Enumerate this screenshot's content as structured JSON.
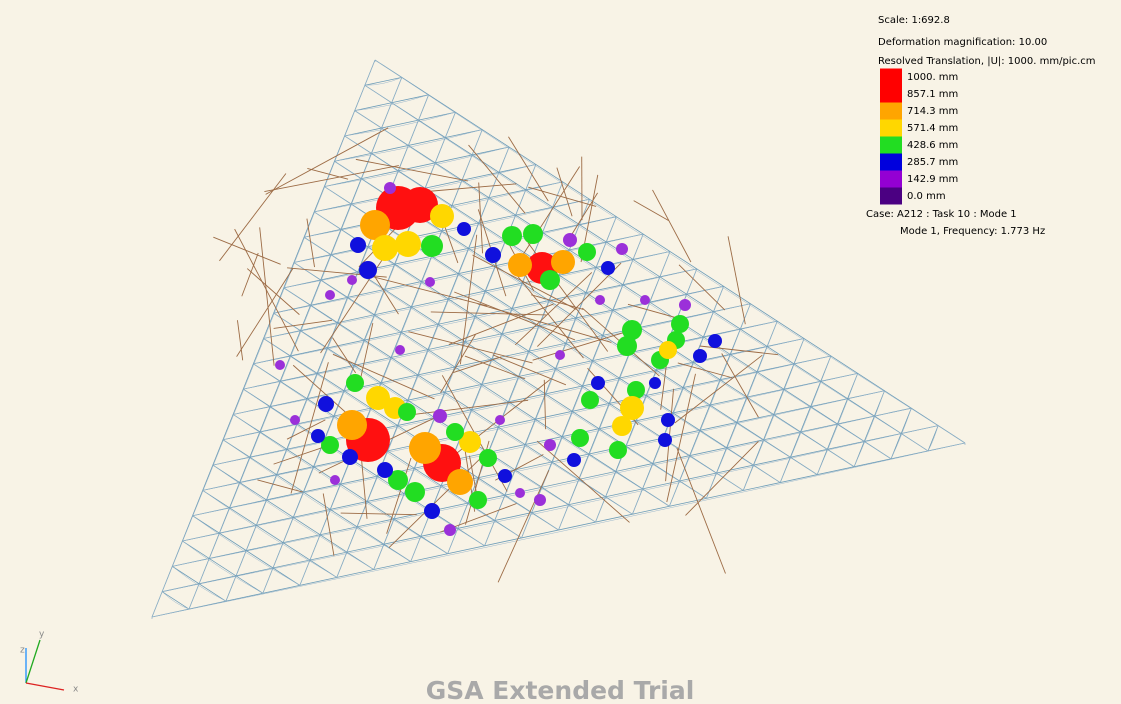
{
  "viewport": {
    "scale": "Scale: 1:692.8",
    "deformation": "Deformation magnification: 10.00",
    "translation": "Resolved Translation, |U|: 1000. mm/pic.cm"
  },
  "legend": [
    {
      "label": "1000. mm",
      "color": "#ff0000"
    },
    {
      "label": "857.1 mm",
      "color": "#ff0000"
    },
    {
      "label": "714.3 mm",
      "color": "#ffa500"
    },
    {
      "label": "571.4 mm",
      "color": "#ffd700"
    },
    {
      "label": "428.6 mm",
      "color": "#22dd22"
    },
    {
      "label": "285.7 mm",
      "color": "#0000dd"
    },
    {
      "label": "142.9 mm",
      "color": "#9400d3"
    },
    {
      "label": "0.0 mm",
      "color": "#4b0082"
    }
  ],
  "case": "Case: A212 : Task 10 : Mode 1",
  "mode": "Mode 1, Frequency: 1.773 Hz",
  "axes": {
    "z": "z",
    "y": "y",
    "x": "x"
  },
  "watermark": "GSA Extended Trial"
}
